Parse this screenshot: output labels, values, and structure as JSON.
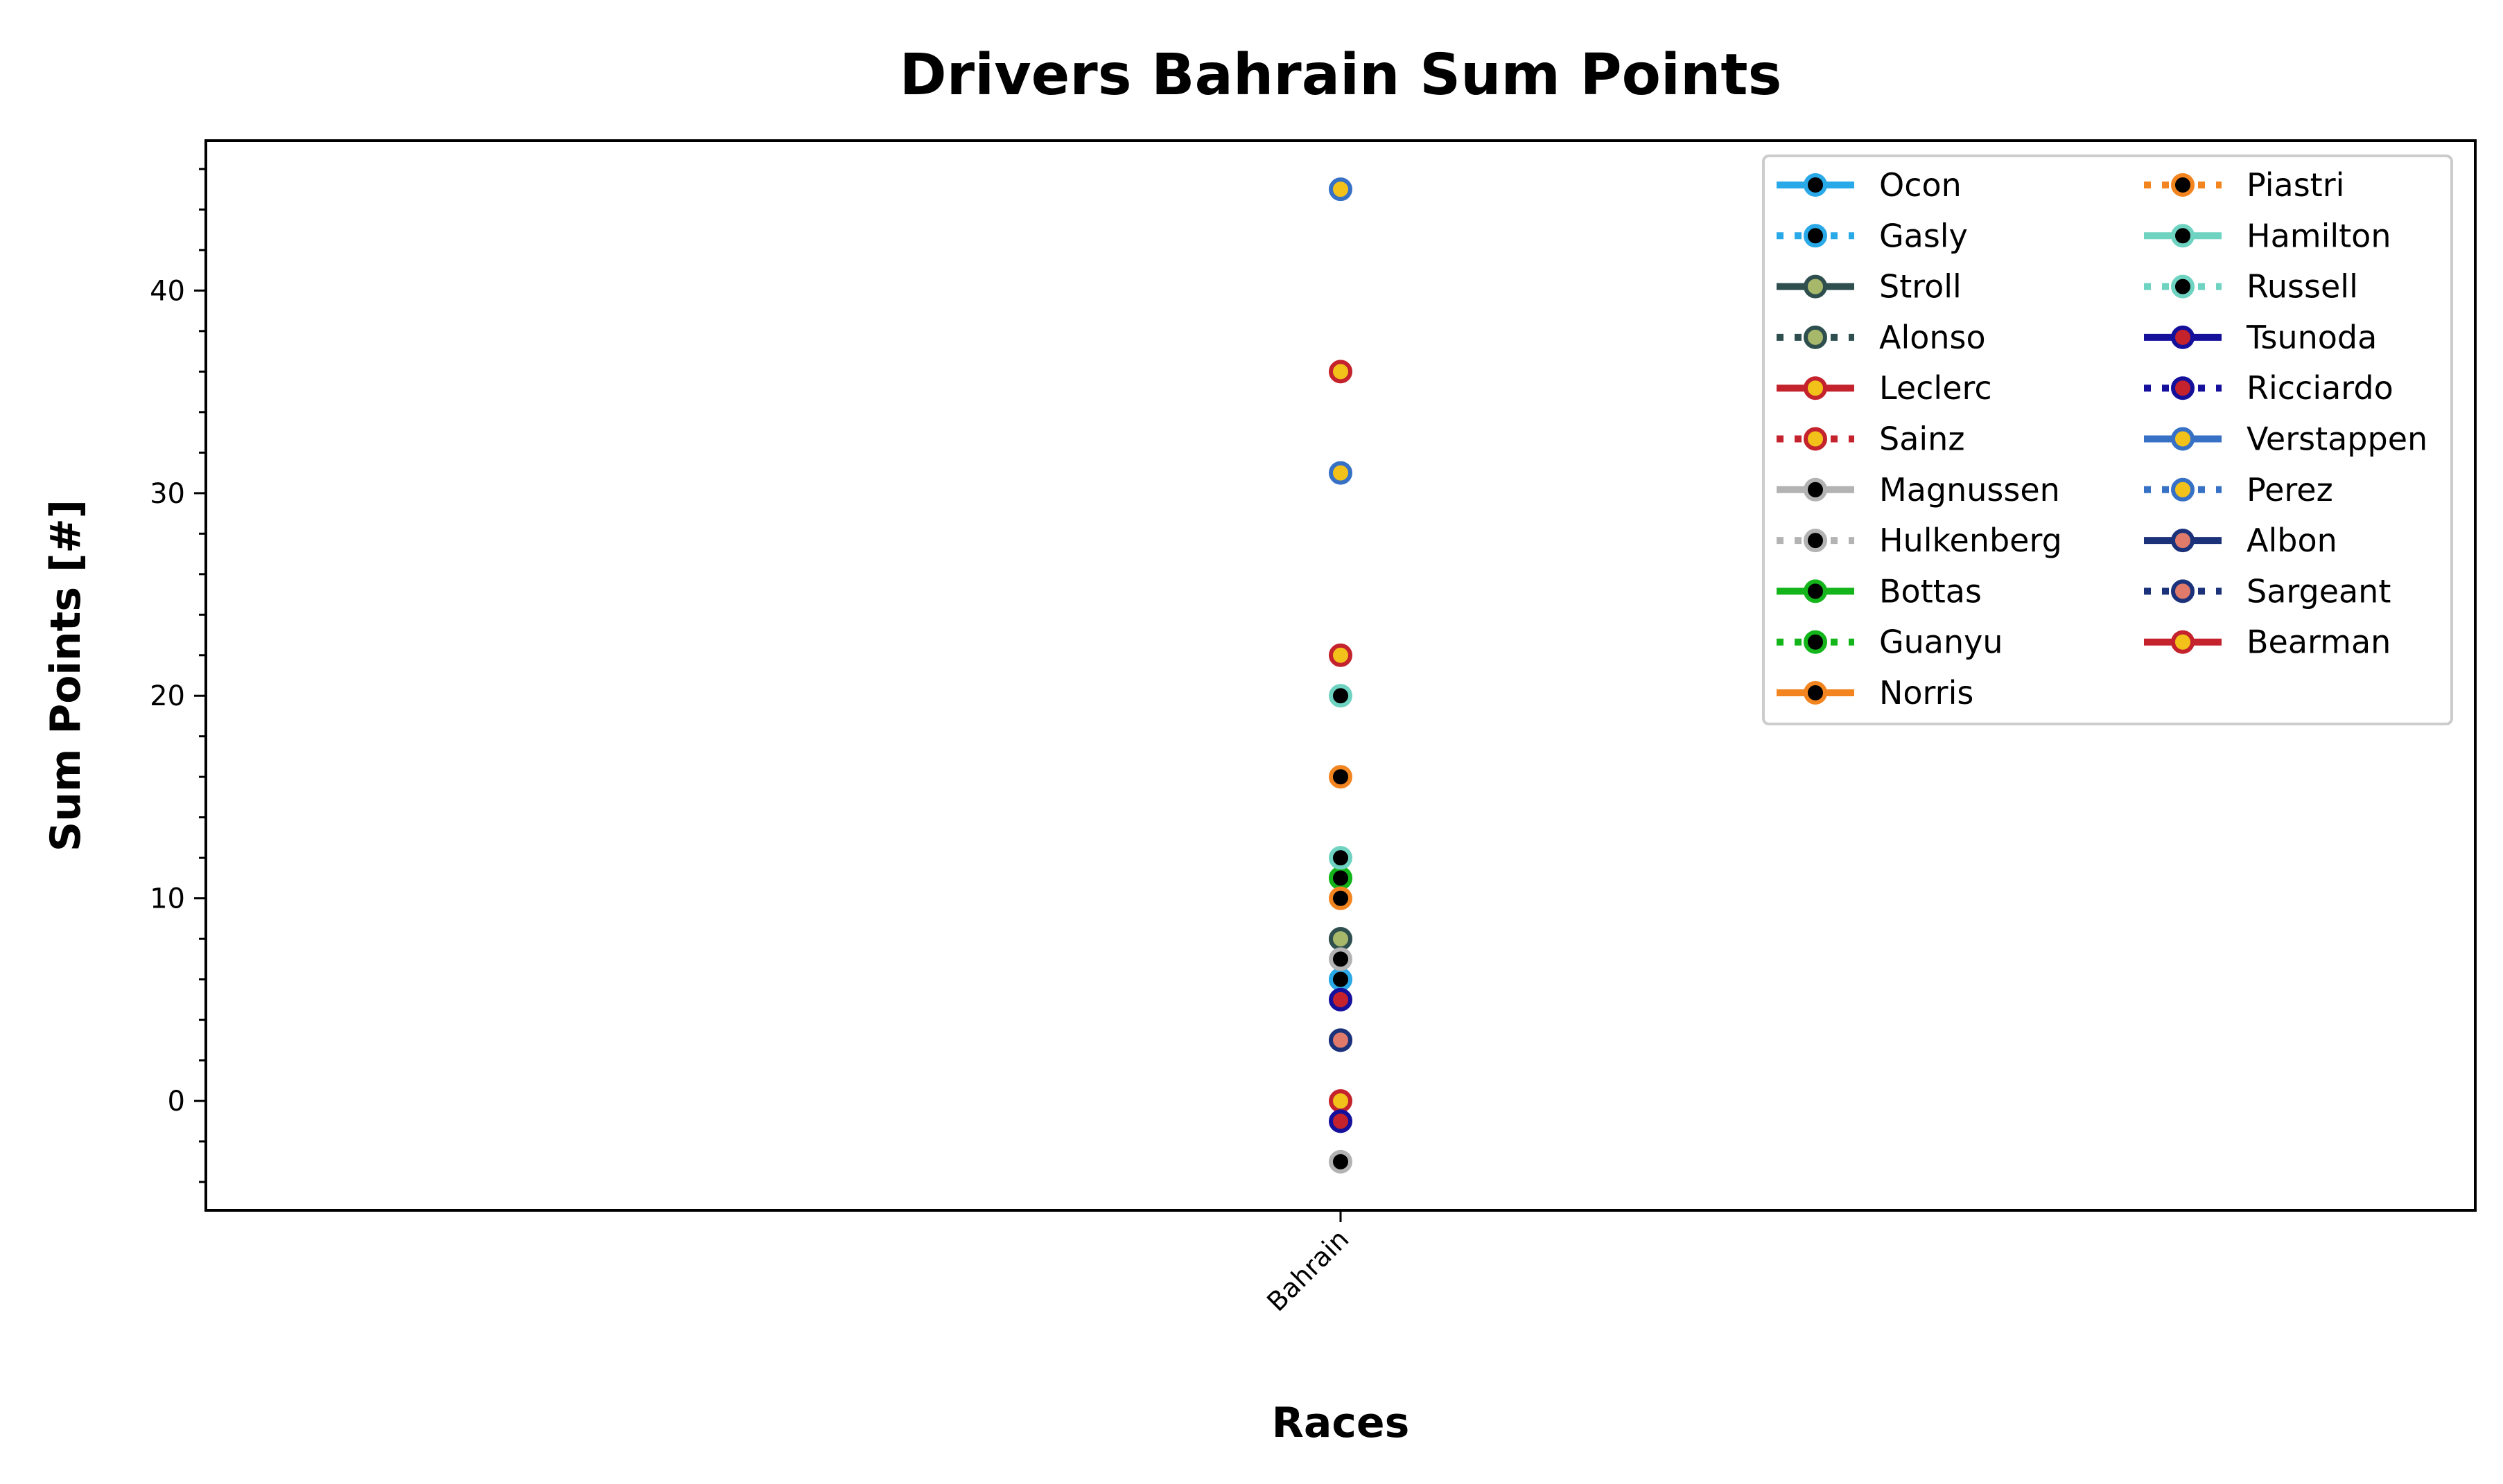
{
  "chart_data": {
    "type": "scatter",
    "title": "Drivers Bahrain Sum Points",
    "xlabel": "Races",
    "ylabel": "Sum Points [#]",
    "categories": [
      "Bahrain"
    ],
    "ylim": [
      -5.4,
      47.4
    ],
    "yticks": [
      0,
      10,
      20,
      30,
      40
    ],
    "y_minor_step": 2,
    "grid": false,
    "legend_position": "top-right",
    "legend_columns": 2,
    "series": [
      {
        "name": "Ocon",
        "values": [
          6
        ],
        "line_color": "#29a9e8",
        "face_color": "#000000",
        "edge_color": "#29a9e8",
        "dash": "solid"
      },
      {
        "name": "Gasly",
        "values": [
          6
        ],
        "line_color": "#29a9e8",
        "face_color": "#000000",
        "edge_color": "#29a9e8",
        "dash": "dotted"
      },
      {
        "name": "Stroll",
        "values": [
          8
        ],
        "line_color": "#2f4f4f",
        "face_color": "#a8b86a",
        "edge_color": "#2f4f4f",
        "dash": "solid"
      },
      {
        "name": "Alonso",
        "values": [
          8
        ],
        "line_color": "#2f4f4f",
        "face_color": "#a8b86a",
        "edge_color": "#2f4f4f",
        "dash": "dotted"
      },
      {
        "name": "Leclerc",
        "values": [
          22
        ],
        "line_color": "#c4222c",
        "face_color": "#f2c21b",
        "edge_color": "#c4222c",
        "dash": "solid"
      },
      {
        "name": "Sainz",
        "values": [
          0
        ],
        "line_color": "#c4222c",
        "face_color": "#f2c21b",
        "edge_color": "#c4222c",
        "dash": "dotted"
      },
      {
        "name": "Magnussen",
        "values": [
          -3
        ],
        "line_color": "#b3b3b3",
        "face_color": "#000000",
        "edge_color": "#b3b3b3",
        "dash": "solid"
      },
      {
        "name": "Hulkenberg",
        "values": [
          7
        ],
        "line_color": "#b3b3b3",
        "face_color": "#000000",
        "edge_color": "#b3b3b3",
        "dash": "dotted"
      },
      {
        "name": "Bottas",
        "values": [
          11
        ],
        "line_color": "#13b51b",
        "face_color": "#000000",
        "edge_color": "#13b51b",
        "dash": "solid"
      },
      {
        "name": "Guanyu",
        "values": [
          11
        ],
        "line_color": "#13b51b",
        "face_color": "#000000",
        "edge_color": "#13b51b",
        "dash": "dotted"
      },
      {
        "name": "Norris",
        "values": [
          10
        ],
        "line_color": "#f28520",
        "face_color": "#000000",
        "edge_color": "#f28520",
        "dash": "solid"
      },
      {
        "name": "Piastri",
        "values": [
          16
        ],
        "line_color": "#f28520",
        "face_color": "#000000",
        "edge_color": "#f28520",
        "dash": "dotted"
      },
      {
        "name": "Hamilton",
        "values": [
          12
        ],
        "line_color": "#6fd3c1",
        "face_color": "#000000",
        "edge_color": "#6fd3c1",
        "dash": "solid"
      },
      {
        "name": "Russell",
        "values": [
          20
        ],
        "line_color": "#6fd3c1",
        "face_color": "#000000",
        "edge_color": "#6fd3c1",
        "dash": "dotted"
      },
      {
        "name": "Tsunoda",
        "values": [
          -1
        ],
        "line_color": "#14109c",
        "face_color": "#c4222c",
        "edge_color": "#14109c",
        "dash": "solid"
      },
      {
        "name": "Ricciardo",
        "values": [
          5
        ],
        "line_color": "#14109c",
        "face_color": "#c4222c",
        "edge_color": "#14109c",
        "dash": "dotted"
      },
      {
        "name": "Verstappen",
        "values": [
          45
        ],
        "line_color": "#3671c6",
        "face_color": "#f2c21b",
        "edge_color": "#3671c6",
        "dash": "solid"
      },
      {
        "name": "Perez",
        "values": [
          31
        ],
        "line_color": "#3671c6",
        "face_color": "#f2c21b",
        "edge_color": "#3671c6",
        "dash": "dotted"
      },
      {
        "name": "Albon",
        "values": [
          3
        ],
        "line_color": "#1b327a",
        "face_color": "#e07a6a",
        "edge_color": "#1b327a",
        "dash": "solid"
      },
      {
        "name": "Sargeant",
        "values": [
          3
        ],
        "line_color": "#1b327a",
        "face_color": "#e07a6a",
        "edge_color": "#1b327a",
        "dash": "dotted"
      },
      {
        "name": "Bearman",
        "values": [
          36
        ],
        "line_color": "#c4222c",
        "face_color": "#f2c21b",
        "edge_color": "#c4222c",
        "dash": "solid"
      }
    ]
  }
}
